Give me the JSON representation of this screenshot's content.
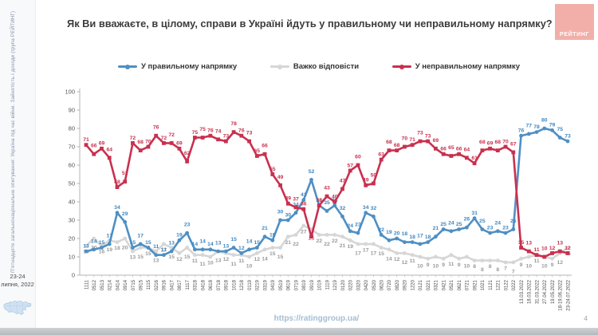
{
  "sidebar": {
    "survey_label": "П'ятнадцяте загальнонаціональне опитування: Україна під час війни. Зайнятість і доходи (група РЕЙТИНГ)",
    "date": "23-24 липня, 2022"
  },
  "header": {
    "title": "Як Ви вважаєте, в цілому, справи в Україні йдуть у правильному чи неправильному напрямку?",
    "logo_text": "РЕЙТИНГ",
    "logo_color": "#f2afa9"
  },
  "legend": [
    {
      "label": "У правильному напрямку"
    },
    {
      "label": "Важко відповісти"
    },
    {
      "label": "У неправильному напрямку"
    }
  ],
  "chart_data": {
    "type": "line",
    "title": "Як Ви вважаєте, в цілому, справи в Україні йдуть у правильному чи неправильному напрямку?",
    "xlabel": "",
    "ylabel": "",
    "ylim": [
      0,
      100
    ],
    "yticks": [
      0,
      10,
      20,
      30,
      40,
      50,
      60,
      70,
      80,
      90,
      100
    ],
    "grid": false,
    "legend_position": "top",
    "categories": [
      "1111",
      "0512",
      "0513",
      "0214",
      "0414",
      "0914",
      "0715",
      "0915",
      "1115",
      "0216",
      "0916",
      "0417",
      "0817",
      "1117",
      "0318",
      "0418",
      "0618",
      "0718",
      "0918",
      "1018",
      "1218",
      "0119",
      "0219",
      "0319",
      "0419",
      "0519",
      "0619",
      "0719",
      "0819",
      "0919",
      "1019",
      "1119",
      "1219",
      "0120",
      "0220",
      "0320",
      "0420",
      "0520",
      "0620",
      "0720",
      "0820",
      "0920",
      "1220",
      "0121",
      "0221",
      "0321",
      "0421",
      "0521",
      "0621",
      "0721",
      "0921",
      "1021",
      "1121",
      "1221",
      "0122",
      "0222",
      "13.03.2022",
      "18.03.2022",
      "31.03.2022",
      "27.04.2022",
      "19.05.2022",
      "18-19.06.2022",
      "23-24.07.2022"
    ],
    "series": [
      {
        "id": "right-direction",
        "name": "У правильному напрямку",
        "color": "#4e8fc4",
        "label_color": "#3f87c0",
        "marker": "circle",
        "label_side": "above",
        "hidden_label_points": [],
        "values": [
          13,
          14,
          15,
          17,
          34,
          29,
          15,
          17,
          15,
          11,
          11,
          13,
          19,
          23,
          14,
          14,
          14,
          13,
          13,
          15,
          12,
          14,
          15,
          21,
          19,
          30,
          30,
          34,
          41,
          52,
          38,
          35,
          38,
          32,
          24,
          23,
          34,
          32,
          22,
          19,
          20,
          18,
          18,
          17,
          18,
          21,
          25,
          24,
          25,
          26,
          31,
          25,
          23,
          24,
          23,
          25,
          76,
          77,
          78,
          80,
          79,
          75,
          73
        ]
      },
      {
        "id": "hard-to-say",
        "name": "Важко відповісти",
        "color": "#d6d6d6",
        "label_color": "#9b9b9b",
        "marker": "circle",
        "label_side": "below",
        "hidden_label_points": [],
        "values": [
          16,
          20,
          16,
          19,
          18,
          20,
          13,
          15,
          15,
          13,
          17,
          15,
          12,
          15,
          11,
          11,
          10,
          13,
          12,
          11,
          11,
          10,
          12,
          14,
          15,
          15,
          21,
          22,
          27,
          25,
          22,
          22,
          22,
          21,
          19,
          17,
          17,
          17,
          15,
          14,
          12,
          12,
          11,
          10,
          9,
          10,
          9,
          11,
          9,
          10,
          8,
          8,
          8,
          8,
          7,
          7,
          9,
          10,
          11,
          10,
          9,
          12,
          15
        ]
      },
      {
        "id": "wrong-direction",
        "name": "У неправильному напрямку",
        "color": "#c9304e",
        "label_color": "#c9304e",
        "marker": "square",
        "label_side": "above",
        "hidden_label_points": [
          29
        ],
        "values": [
          71,
          66,
          69,
          64,
          48,
          51,
          72,
          68,
          70,
          76,
          72,
          72,
          69,
          62,
          75,
          75,
          76,
          74,
          73,
          78,
          76,
          73,
          65,
          66,
          55,
          49,
          39,
          37,
          36,
          21,
          38,
          43,
          40,
          47,
          57,
          60,
          49,
          50,
          63,
          68,
          68,
          70,
          71,
          73,
          73,
          69,
          66,
          65,
          66,
          64,
          61,
          68,
          69,
          68,
          70,
          67,
          15,
          13,
          11,
          10,
          12,
          13,
          12
        ]
      }
    ]
  },
  "footer": {
    "url": "https://ratinggroup.ua/",
    "page_number": "4"
  }
}
